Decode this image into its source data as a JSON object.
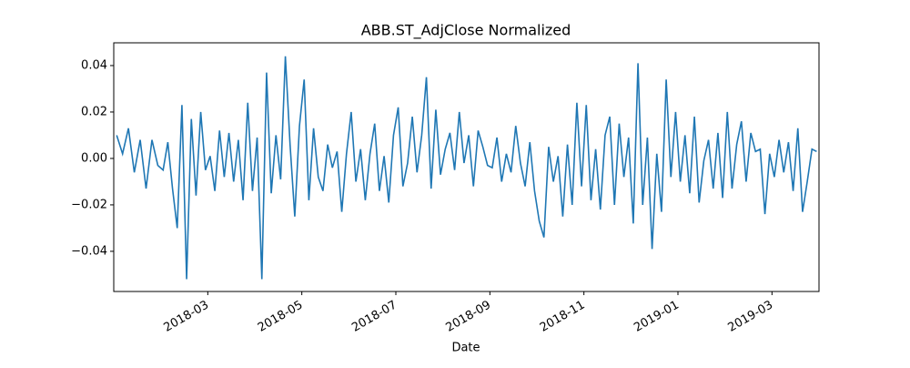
{
  "chart_data": {
    "type": "line",
    "title": "ABB.ST_AdjClose Normalized",
    "xlabel": "Date",
    "color": "#1f77b4",
    "x": [
      "2018-01",
      "2018-01",
      "2018-01",
      "2018-01",
      "2018-01",
      "2018-01",
      "2018-01",
      "2018-01",
      "2018-02",
      "2018-02",
      "2018-02",
      "2018-02",
      "2018-02",
      "2018-02",
      "2018-02",
      "2018-02",
      "2018-02",
      "2018-02",
      "2018-03",
      "2018-03",
      "2018-03",
      "2018-03",
      "2018-03",
      "2018-03",
      "2018-03",
      "2018-03",
      "2018-03",
      "2018-03",
      "2018-04",
      "2018-04",
      "2018-04",
      "2018-04",
      "2018-04",
      "2018-04",
      "2018-04",
      "2018-04",
      "2018-04",
      "2018-04",
      "2018-05",
      "2018-05",
      "2018-05",
      "2018-05",
      "2018-05",
      "2018-05",
      "2018-05",
      "2018-05",
      "2018-05",
      "2018-05",
      "2018-06",
      "2018-06",
      "2018-06",
      "2018-06",
      "2018-06",
      "2018-06",
      "2018-06",
      "2018-06",
      "2018-06",
      "2018-06",
      "2018-07",
      "2018-07",
      "2018-07",
      "2018-07",
      "2018-07",
      "2018-07",
      "2018-07",
      "2018-07",
      "2018-07",
      "2018-07",
      "2018-08",
      "2018-08",
      "2018-08",
      "2018-08",
      "2018-08",
      "2018-08",
      "2018-08",
      "2018-08",
      "2018-08",
      "2018-08",
      "2018-09",
      "2018-09",
      "2018-09",
      "2018-09",
      "2018-09",
      "2018-09",
      "2018-09",
      "2018-09",
      "2018-09",
      "2018-09",
      "2018-10",
      "2018-10",
      "2018-10",
      "2018-10",
      "2018-10",
      "2018-10",
      "2018-10",
      "2018-10",
      "2018-10",
      "2018-10",
      "2018-11",
      "2018-11",
      "2018-11",
      "2018-11",
      "2018-11",
      "2018-11",
      "2018-11",
      "2018-11",
      "2018-11",
      "2018-11",
      "2018-12",
      "2018-12",
      "2018-12",
      "2018-12",
      "2018-12",
      "2018-12",
      "2018-12",
      "2018-12",
      "2018-12",
      "2018-12",
      "2019-01",
      "2019-01",
      "2019-01",
      "2019-01",
      "2019-01",
      "2019-01",
      "2019-01",
      "2019-01",
      "2019-01",
      "2019-01",
      "2019-02",
      "2019-02",
      "2019-02",
      "2019-02",
      "2019-02",
      "2019-02",
      "2019-02",
      "2019-02",
      "2019-02",
      "2019-02",
      "2019-03",
      "2019-03",
      "2019-03",
      "2019-03",
      "2019-03",
      "2019-03",
      "2019-03",
      "2019-03",
      "2019-03",
      "2019-03"
    ],
    "values": [
      0.01,
      0.002,
      0.013,
      -0.006,
      0.008,
      -0.013,
      0.008,
      -0.003,
      -0.005,
      0.007,
      -0.013,
      -0.03,
      0.023,
      -0.052,
      0.017,
      -0.016,
      0.02,
      -0.005,
      0.001,
      -0.014,
      0.012,
      -0.008,
      0.011,
      -0.01,
      0.008,
      -0.018,
      0.024,
      -0.014,
      0.009,
      -0.052,
      0.037,
      -0.015,
      0.01,
      -0.009,
      0.044,
      0.006,
      -0.025,
      0.014,
      0.034,
      -0.018,
      0.013,
      -0.008,
      -0.014,
      0.006,
      -0.004,
      0.003,
      -0.023,
      0.002,
      0.02,
      -0.01,
      0.004,
      -0.018,
      0.002,
      0.015,
      -0.014,
      0.001,
      -0.019,
      0.01,
      0.022,
      -0.012,
      -0.002,
      0.018,
      -0.006,
      0.01,
      0.035,
      -0.013,
      0.021,
      -0.007,
      0.004,
      0.011,
      -0.005,
      0.02,
      -0.002,
      0.01,
      -0.012,
      0.012,
      0.005,
      -0.003,
      -0.004,
      0.009,
      -0.01,
      0.002,
      -0.006,
      0.014,
      -0.002,
      -0.012,
      0.007,
      -0.014,
      -0.027,
      -0.034,
      0.005,
      -0.01,
      0.001,
      -0.025,
      0.006,
      -0.02,
      0.024,
      -0.012,
      0.023,
      -0.018,
      0.004,
      -0.022,
      0.01,
      0.018,
      -0.02,
      0.015,
      -0.008,
      0.009,
      -0.028,
      0.041,
      -0.02,
      0.009,
      -0.039,
      0.002,
      -0.023,
      0.034,
      -0.008,
      0.02,
      -0.01,
      0.01,
      -0.015,
      0.018,
      -0.019,
      -0.001,
      0.008,
      -0.013,
      0.011,
      -0.017,
      0.02,
      -0.013,
      0.006,
      0.016,
      -0.01,
      0.011,
      0.003,
      0.004,
      -0.024,
      0.002,
      -0.008,
      0.008,
      -0.006,
      0.007,
      -0.014,
      0.013,
      -0.023,
      -0.01,
      0.004,
      0.003
    ],
    "xlim": [
      "2018-01",
      "2019-03"
    ],
    "xticks": [
      "2018-03",
      "2018-05",
      "2018-07",
      "2018-09",
      "2018-11",
      "2019-01",
      "2019-03"
    ],
    "ylim": [
      -0.0573,
      0.0498
    ],
    "yticks": [
      {
        "value": -0.04,
        "label": "−0.04"
      },
      {
        "value": -0.02,
        "label": "−0.02"
      },
      {
        "value": 0,
        "label": "0.00"
      },
      {
        "value": 0.02,
        "label": "0.02"
      },
      {
        "value": 0.04,
        "label": "0.04"
      }
    ]
  }
}
